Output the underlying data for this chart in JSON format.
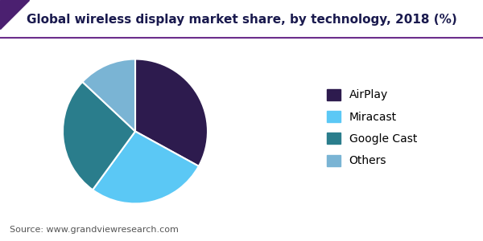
{
  "title": "Global wireless display market share, by technology, 2018 (%)",
  "source": "Source: www.grandviewresearch.com",
  "labels": [
    "AirPlay",
    "Miracast",
    "Google Cast",
    "Others"
  ],
  "values": [
    33,
    27,
    27,
    13
  ],
  "colors": [
    "#2d1b4e",
    "#5bc8f5",
    "#2a7d8c",
    "#7ab4d4"
  ],
  "legend_labels": [
    "AirPlay",
    "Miracast",
    "Google Cast",
    "Others"
  ],
  "startangle": 90,
  "title_fontsize": 11,
  "source_fontsize": 8,
  "legend_fontsize": 10,
  "background_color": "#ffffff",
  "header_line_color": "#6b2d8b",
  "title_color": "#1a1a4e"
}
